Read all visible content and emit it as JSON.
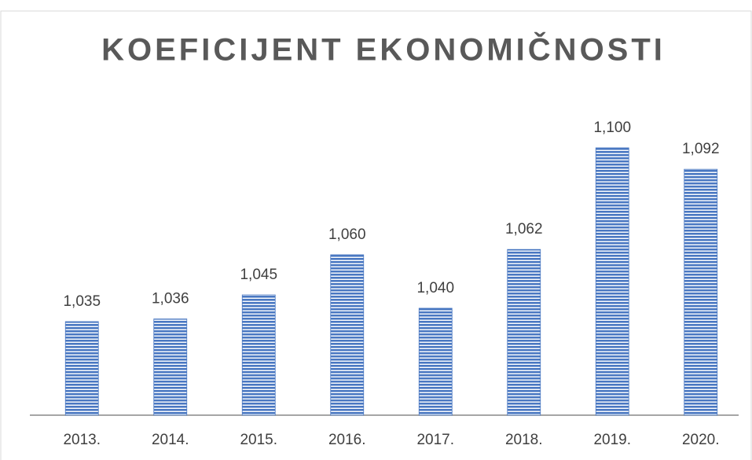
{
  "chart_data": {
    "type": "bar",
    "title": "KOEFICIJENT EKONOMIČNOSTI",
    "categories": [
      "2013.",
      "2014.",
      "2015.",
      "2016.",
      "2017.",
      "2018.",
      "2019.",
      "2020."
    ],
    "values": [
      1.035,
      1.036,
      1.045,
      1.06,
      1.04,
      1.062,
      1.1,
      1.092
    ],
    "value_labels": [
      "1,035",
      "1,036",
      "1,045",
      "1,060",
      "1,040",
      "1,062",
      "1,100",
      "1,092"
    ],
    "color": "#4a78c2",
    "ylim": [
      1,
      1.12
    ]
  }
}
